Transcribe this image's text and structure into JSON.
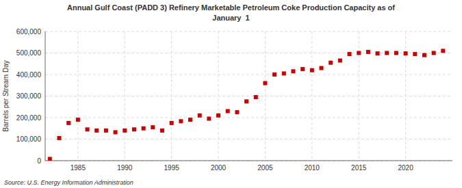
{
  "chart_data": {
    "type": "scatter",
    "title": "Annual Gulf Coast (PADD 3) Refinery Marketable Petroleum Coke Production Capacity as of",
    "subtitle": "January  1",
    "y_label": "Barrels per Stream Day",
    "source": "Source: U.S. Energy Information Administration",
    "x": [
      1982,
      1983,
      1984,
      1985,
      1986,
      1987,
      1988,
      1989,
      1990,
      1991,
      1992,
      1993,
      1994,
      1995,
      1996,
      1997,
      1998,
      1999,
      2000,
      2001,
      2002,
      2003,
      2004,
      2005,
      2006,
      2007,
      2008,
      2009,
      2010,
      2011,
      2012,
      2013,
      2014,
      2015,
      2016,
      2017,
      2018,
      2019,
      2020,
      2021,
      2022,
      2023,
      2024
    ],
    "values": [
      8000,
      105000,
      175000,
      190000,
      145000,
      140000,
      140000,
      132000,
      140000,
      145000,
      150000,
      155000,
      140000,
      175000,
      183000,
      190000,
      210000,
      195000,
      210000,
      230000,
      225000,
      275000,
      295000,
      360000,
      400000,
      405000,
      415000,
      425000,
      420000,
      430000,
      455000,
      465000,
      495000,
      500000,
      505000,
      498000,
      500000,
      500000,
      498000,
      495000,
      490000,
      500000,
      510000
    ],
    "color": "#cc0000",
    "marker": "square",
    "xlim": [
      1981.5,
      2025
    ],
    "xticks": [
      1985,
      1990,
      1995,
      2000,
      2005,
      2010,
      2015,
      2020
    ],
    "ylim": [
      0,
      600000
    ],
    "yticks": [
      0,
      {
        "value": 100000,
        "label": "100,000"
      },
      {
        "value": 200000,
        "label": "200,000"
      },
      {
        "value": 300000,
        "label": "300,000"
      },
      {
        "value": 400000,
        "label": "400,000"
      },
      {
        "value": 500000,
        "label": "500,000"
      },
      {
        "value": 600000,
        "label": "600,000"
      }
    ],
    "grid": true
  }
}
